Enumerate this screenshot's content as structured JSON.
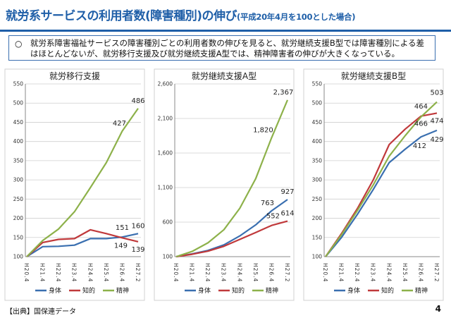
{
  "header": {
    "title": "就労系サービスの利用者数(障害種別)の伸び",
    "subtitle": "(平成20年4月を100とした場合)"
  },
  "summary": {
    "mark": "○",
    "text": "就労系障害福祉サービスの障害種別ごとの利用者数の伸びを見ると、就労継続支援B型では障害種別による差はほとんどないが、就労移行支援及び就労継続支援A型では、精神障害者の伸びが大きくなっている。"
  },
  "colors": {
    "身体": "#3a6fb0",
    "知的": "#c0393b",
    "精神": "#8db14a"
  },
  "chart_data": [
    {
      "type": "line",
      "title": "就労移行支援",
      "categories": [
        "H20.4",
        "H21.4",
        "H22.4",
        "H23.4",
        "H24.4",
        "H25.4",
        "H26.4",
        "H27.2"
      ],
      "ylim": [
        100,
        550
      ],
      "yticks": [
        100,
        150,
        200,
        250,
        300,
        350,
        400,
        450,
        500,
        550
      ],
      "ytick_labels": [
        "100",
        "150",
        "200",
        "250",
        "300",
        "350",
        "400",
        "450",
        "500",
        "550"
      ],
      "series": [
        {
          "name": "身体",
          "values": [
            100,
            126,
            127,
            130,
            147,
            147,
            151,
            160
          ]
        },
        {
          "name": "知的",
          "values": [
            100,
            137,
            145,
            147,
            170,
            160,
            149,
            139
          ]
        },
        {
          "name": "精神",
          "values": [
            100,
            142,
            172,
            217,
            280,
            345,
            427,
            486
          ]
        }
      ],
      "labels": [
        {
          "text": "486",
          "series": 2,
          "index": 7,
          "dx": 0,
          "dy": -8
        },
        {
          "text": "427",
          "series": 2,
          "index": 6,
          "dx": -4,
          "dy": -8
        },
        {
          "text": "160",
          "series": 0,
          "index": 7,
          "dx": 0,
          "dy": -8
        },
        {
          "text": "151",
          "series": 0,
          "index": 6,
          "dx": 0,
          "dy": -10
        },
        {
          "text": "149",
          "series": 1,
          "index": 6,
          "dx": -2,
          "dy": 14
        },
        {
          "text": "139",
          "series": 1,
          "index": 7,
          "dx": 0,
          "dy": 14
        }
      ],
      "legend": [
        "身体",
        "知的",
        "精神"
      ],
      "legend_position": "bottom",
      "grid": true
    },
    {
      "type": "line",
      "title": "就労継続支援A型",
      "categories": [
        "H20.4",
        "H21.4",
        "H22.4",
        "H23.4",
        "H24.4",
        "H25.4",
        "H26.4",
        "H27.2"
      ],
      "ylim": [
        100,
        2600
      ],
      "yticks": [
        100,
        600,
        1100,
        1600,
        2100,
        2600
      ],
      "ytick_labels": [
        "100",
        "600",
        "1,100",
        "1,600",
        "2,100",
        "2,600"
      ],
      "series": [
        {
          "name": "身体",
          "values": [
            100,
            140,
            190,
            270,
            400,
            560,
            763,
            927
          ]
        },
        {
          "name": "知的",
          "values": [
            100,
            135,
            180,
            250,
            350,
            450,
            552,
            614
          ]
        },
        {
          "name": "精神",
          "values": [
            100,
            175,
            300,
            490,
            800,
            1230,
            1820,
            2367
          ]
        }
      ],
      "labels": [
        {
          "text": "2,367",
          "series": 2,
          "index": 7,
          "dx": -6,
          "dy": -8
        },
        {
          "text": "1,820",
          "series": 2,
          "index": 6,
          "dx": -12,
          "dy": -8
        },
        {
          "text": "927",
          "series": 0,
          "index": 7,
          "dx": 0,
          "dy": -8
        },
        {
          "text": "763",
          "series": 0,
          "index": 6,
          "dx": -6,
          "dy": -8
        },
        {
          "text": "552",
          "series": 1,
          "index": 6,
          "dx": 2,
          "dy": -10
        },
        {
          "text": "614",
          "series": 1,
          "index": 7,
          "dx": 0,
          "dy": -8
        }
      ],
      "legend": [
        "身体",
        "知的",
        "精神"
      ],
      "legend_position": "bottom",
      "grid": true
    },
    {
      "type": "line",
      "title": "就労継続支援B型",
      "categories": [
        "H20.4",
        "H21.4",
        "H22.4",
        "H23.4",
        "H24.4",
        "H25.4",
        "H26.4",
        "H27.2"
      ],
      "ylim": [
        100,
        550
      ],
      "yticks": [
        100,
        150,
        200,
        250,
        300,
        350,
        400,
        450,
        500,
        550
      ],
      "ytick_labels": [
        "100",
        "150",
        "200",
        "250",
        "300",
        "350",
        "400",
        "450",
        "500",
        "550"
      ],
      "series": [
        {
          "name": "身体",
          "values": [
            100,
            150,
            210,
            275,
            345,
            380,
            412,
            429
          ]
        },
        {
          "name": "知的",
          "values": [
            100,
            160,
            225,
            300,
            392,
            432,
            466,
            474
          ]
        },
        {
          "name": "精神",
          "values": [
            100,
            157,
            220,
            287,
            362,
            415,
            464,
            503
          ]
        }
      ],
      "labels": [
        {
          "text": "503",
          "series": 2,
          "index": 7,
          "dx": 0,
          "dy": -10
        },
        {
          "text": "464",
          "series": 2,
          "index": 6,
          "dx": 0,
          "dy": -12
        },
        {
          "text": "474",
          "series": 1,
          "index": 7,
          "dx": 0,
          "dy": 14
        },
        {
          "text": "466",
          "series": 1,
          "index": 6,
          "dx": 0,
          "dy": 14
        },
        {
          "text": "412",
          "series": 0,
          "index": 6,
          "dx": -2,
          "dy": 16
        },
        {
          "text": "429",
          "series": 0,
          "index": 7,
          "dx": 0,
          "dy": 16
        }
      ],
      "legend": [
        "身体",
        "知的",
        "精神"
      ],
      "legend_position": "bottom",
      "grid": true
    }
  ],
  "footer": {
    "source": "【出典】国保連データ",
    "page_number": "4"
  }
}
